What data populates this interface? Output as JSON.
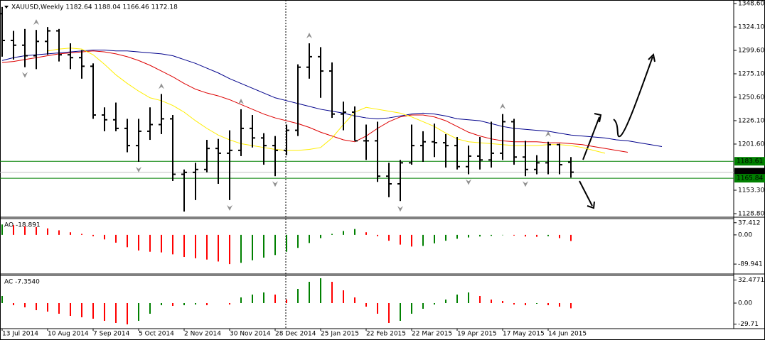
{
  "chart_data": [
    {
      "type": "ohlc",
      "title": "XAUUSD,Weekly  1182.64 1188.04 1166.46 1172.18",
      "color": "#000000",
      "categories": [
        "13 Jul 2014",
        null,
        null,
        null,
        "10 Aug 2014",
        null,
        null,
        null,
        "7 Sep 2014",
        null,
        null,
        null,
        "5 Oct 2014",
        null,
        null,
        null,
        "2 Nov 2014",
        null,
        null,
        null,
        "30 Nov 2014",
        null,
        null,
        null,
        "28 Dec 2014",
        null,
        null,
        null,
        "25 Jan 2015",
        null,
        null,
        null,
        "22 Feb 2015",
        null,
        null,
        null,
        "22 Mar 2015",
        null,
        null,
        null,
        "19 Apr 2015",
        null,
        null,
        null,
        "17 May 2015",
        null,
        null,
        null,
        "14 Jun 2015",
        null,
        null,
        null,
        null,
        null,
        null,
        null,
        null,
        null,
        null
      ],
      "open": [
        1338,
        1310,
        1305,
        1294,
        1309,
        1320,
        1295,
        1292,
        1283,
        1232,
        1227,
        1218,
        1200,
        1215,
        1222,
        1228,
        1170,
        1172,
        1175,
        1197,
        1192,
        1195,
        1218,
        1208,
        1200,
        1195,
        1216,
        1282,
        1293,
        1278,
        1233,
        1235,
        1205,
        1205,
        1168,
        1160,
        1182,
        1200,
        1204,
        1203,
        1200,
        1178,
        1189,
        1185,
        1192,
        1225,
        1188,
        1175,
        1182,
        1201,
        1182.64,
        null,
        null,
        null,
        null,
        null,
        null,
        null,
        null
      ],
      "high": [
        1345,
        1320,
        1322,
        1321,
        1324,
        1322,
        1307,
        1300,
        1286,
        1240,
        1245,
        1228,
        1228,
        1240,
        1254,
        1232,
        1175,
        1182,
        1206,
        1207,
        1216,
        1238,
        1232,
        1213,
        1210,
        1222,
        1285,
        1307,
        1303,
        1287,
        1246,
        1241,
        1222,
        1225,
        1182,
        1185,
        1222,
        1215,
        1223,
        1212,
        1209,
        1200,
        1209,
        1225,
        1233,
        1228,
        1205,
        1190,
        1204,
        1202,
        1188.04,
        null,
        null,
        null,
        null,
        null,
        null,
        null,
        null
      ],
      "low": [
        1293,
        1290,
        1282,
        1280,
        1295,
        1288,
        1280,
        1270,
        1228,
        1215,
        1215,
        1193,
        1183,
        1206,
        1212,
        1163,
        1131,
        1143,
        1172,
        1160,
        1143,
        1189,
        1198,
        1180,
        1168,
        1190,
        1210,
        1270,
        1250,
        1229,
        1216,
        1205,
        1185,
        1162,
        1146,
        1142,
        1180,
        1183,
        1188,
        1177,
        1175,
        1170,
        1175,
        1177,
        1185,
        1180,
        1168,
        1170,
        1170,
        1170,
        1166.46,
        null,
        null,
        null,
        null,
        null,
        null,
        null,
        null
      ],
      "close": [
        1310,
        1305,
        1294,
        1309,
        1320,
        1295,
        1292,
        1283,
        1232,
        1227,
        1218,
        1200,
        1215,
        1222,
        1228,
        1170,
        1172,
        1175,
        1197,
        1192,
        1195,
        1218,
        1208,
        1200,
        1195,
        1216,
        1282,
        1293,
        1278,
        1233,
        1235,
        1205,
        1205,
        1168,
        1160,
        1182,
        1200,
        1204,
        1203,
        1200,
        1178,
        1189,
        1185,
        1192,
        1225,
        1188,
        1175,
        1182,
        1201,
        1180,
        1172.18,
        null,
        null,
        null,
        null,
        null,
        null,
        null,
        null
      ],
      "lines": [
        {
          "color": "#00008b",
          "values": [
            1289,
            1292,
            1294,
            1295,
            1296,
            1297,
            1298,
            1299,
            1300,
            1300,
            1299,
            1299,
            1298,
            1297,
            1296,
            1294,
            1290,
            1286,
            1281,
            1276,
            1270,
            1265,
            1260,
            1255,
            1250,
            1247,
            1244,
            1241,
            1238,
            1236,
            1234,
            1231,
            1229,
            1228,
            1229,
            1231,
            1233,
            1234,
            1233,
            1231,
            1228,
            1227,
            1226,
            1223,
            1220,
            1218,
            1217,
            1216,
            1215,
            1213,
            1211,
            1210,
            1209,
            1208,
            1206,
            1205,
            1203,
            1201,
            1199
          ]
        },
        {
          "color": "#dd0000",
          "values": [
            1287,
            1288,
            1290,
            1292,
            1294,
            1296,
            1297,
            1298,
            1299,
            1298,
            1296,
            1293,
            1289,
            1284,
            1278,
            1272,
            1265,
            1259,
            1255,
            1252,
            1248,
            1243,
            1238,
            1233,
            1229,
            1226,
            1223,
            1219,
            1214,
            1210,
            1206,
            1204,
            1210,
            1218,
            1225,
            1230,
            1232,
            1232,
            1230,
            1226,
            1220,
            1214,
            1210,
            1207,
            1205,
            1204,
            1204,
            1204,
            1203,
            1203,
            1202,
            1201,
            1199,
            1197,
            1195,
            1193,
            null,
            null,
            null
          ]
        },
        {
          "color": "#ffee00",
          "values": [
            null,
            null,
            null,
            null,
            1299,
            1301,
            1302,
            1301,
            1295,
            1285,
            1274,
            1265,
            1257,
            1250,
            1247,
            1242,
            1235,
            1226,
            1218,
            1211,
            1206,
            1202,
            1200,
            1198,
            1196,
            1195,
            1195,
            1196,
            1198,
            1208,
            1222,
            1235,
            1240,
            1238,
            1236,
            1234,
            1230,
            1225,
            1220,
            1213,
            1207,
            1204,
            1203,
            1202,
            1201,
            1200,
            1200,
            1200,
            1201,
            1201,
            1200,
            1198,
            1195,
            1192,
            null,
            null,
            null,
            null,
            null
          ]
        }
      ],
      "fractal_color": "#909090",
      "fractals_up": [
        null,
        null,
        null,
        1321,
        null,
        null,
        null,
        null,
        null,
        null,
        null,
        null,
        null,
        null,
        1254,
        null,
        null,
        null,
        null,
        null,
        null,
        1238,
        null,
        null,
        null,
        null,
        null,
        1307,
        null,
        null,
        null,
        null,
        null,
        null,
        null,
        null,
        null,
        null,
        null,
        null,
        null,
        null,
        null,
        null,
        1233,
        null,
        null,
        null,
        1204,
        null,
        null,
        null,
        null,
        null,
        null,
        null,
        null,
        null,
        null
      ],
      "fractals_down": [
        null,
        null,
        1282,
        null,
        null,
        null,
        null,
        null,
        null,
        null,
        null,
        null,
        1183,
        null,
        null,
        null,
        null,
        null,
        null,
        null,
        1143,
        null,
        null,
        null,
        1168,
        null,
        null,
        null,
        null,
        null,
        null,
        null,
        null,
        null,
        null,
        1142,
        null,
        null,
        null,
        null,
        null,
        1170,
        null,
        null,
        null,
        null,
        1168,
        null,
        null,
        null,
        null,
        null,
        null,
        null,
        null,
        null,
        null,
        null,
        null
      ],
      "levels": [
        {
          "value": 1183.61,
          "label": "1183.61",
          "color": "#008000",
          "label_color": "#008000"
        },
        {
          "value": 1172.18,
          "label": "1172.18",
          "color": "#c0c0c0",
          "label_color": "#000000"
        },
        {
          "value": 1165.84,
          "label": "1165.84",
          "color": "#008000",
          "label_color": "#008000"
        }
      ],
      "ylim": [
        1125.83,
        1352.31
      ],
      "yticks": [
        {
          "value": 1348.6,
          "label": "1348.60"
        },
        {
          "value": 1324.1,
          "label": "1324.10"
        },
        {
          "value": 1299.6,
          "label": "1299.60"
        },
        {
          "value": 1275.1,
          "label": "1275.10"
        },
        {
          "value": 1250.6,
          "label": "1250.60"
        },
        {
          "value": 1226.1,
          "label": "1226.10"
        },
        {
          "value": 1201.6,
          "label": "1201.60"
        },
        {
          "value": 1153.3,
          "label": "1153.30"
        },
        {
          "value": 1128.8,
          "label": "1128.80"
        }
      ]
    },
    {
      "type": "bar",
      "title": "AO -18.891",
      "up_color": "#008000",
      "down_color": "#ff0000",
      "values": [
        32,
        30,
        26,
        24,
        20,
        14,
        8,
        3,
        -4,
        -14,
        -24,
        -38,
        -48,
        -52,
        -54,
        -60,
        -68,
        -72,
        -76,
        -82,
        -90,
        -86,
        -78,
        -70,
        -62,
        -52,
        -40,
        -25,
        -10,
        3,
        12,
        18,
        8,
        -4,
        -18,
        -30,
        -36,
        -34,
        -26,
        -18,
        -12,
        -8,
        -5,
        -3,
        -1,
        -2,
        -5,
        -6,
        -4,
        -10,
        -18.891,
        null,
        null,
        null,
        null,
        null,
        null,
        null,
        null
      ],
      "ylim": [
        -116,
        50
      ],
      "yticks": [
        37.412,
        {
          "value": 0,
          "label": "0.00"
        },
        -89.941
      ]
    },
    {
      "type": "bar",
      "title": "AC -7.3540",
      "up_color": "#008000",
      "down_color": "#ff0000",
      "values": [
        10,
        -3,
        -6,
        -10,
        -12,
        -15,
        -18,
        -20,
        -22,
        -25,
        -28,
        -30,
        -25,
        -15,
        -3,
        -4,
        -3,
        -2,
        -3,
        0,
        -2,
        8,
        12,
        15,
        12,
        5,
        20,
        30,
        35,
        30,
        18,
        8,
        -5,
        -15,
        -28,
        -25,
        -15,
        -8,
        -2,
        5,
        12,
        15,
        10,
        5,
        3,
        -2,
        -3,
        -1,
        -3,
        -5,
        -7.354,
        null,
        null,
        null,
        null,
        null,
        null,
        null,
        null
      ],
      "ylim": [
        -35,
        38
      ],
      "yticks": [
        32.4771,
        {
          "value": 0,
          "label": "0.00"
        },
        -29.71
      ]
    }
  ]
}
